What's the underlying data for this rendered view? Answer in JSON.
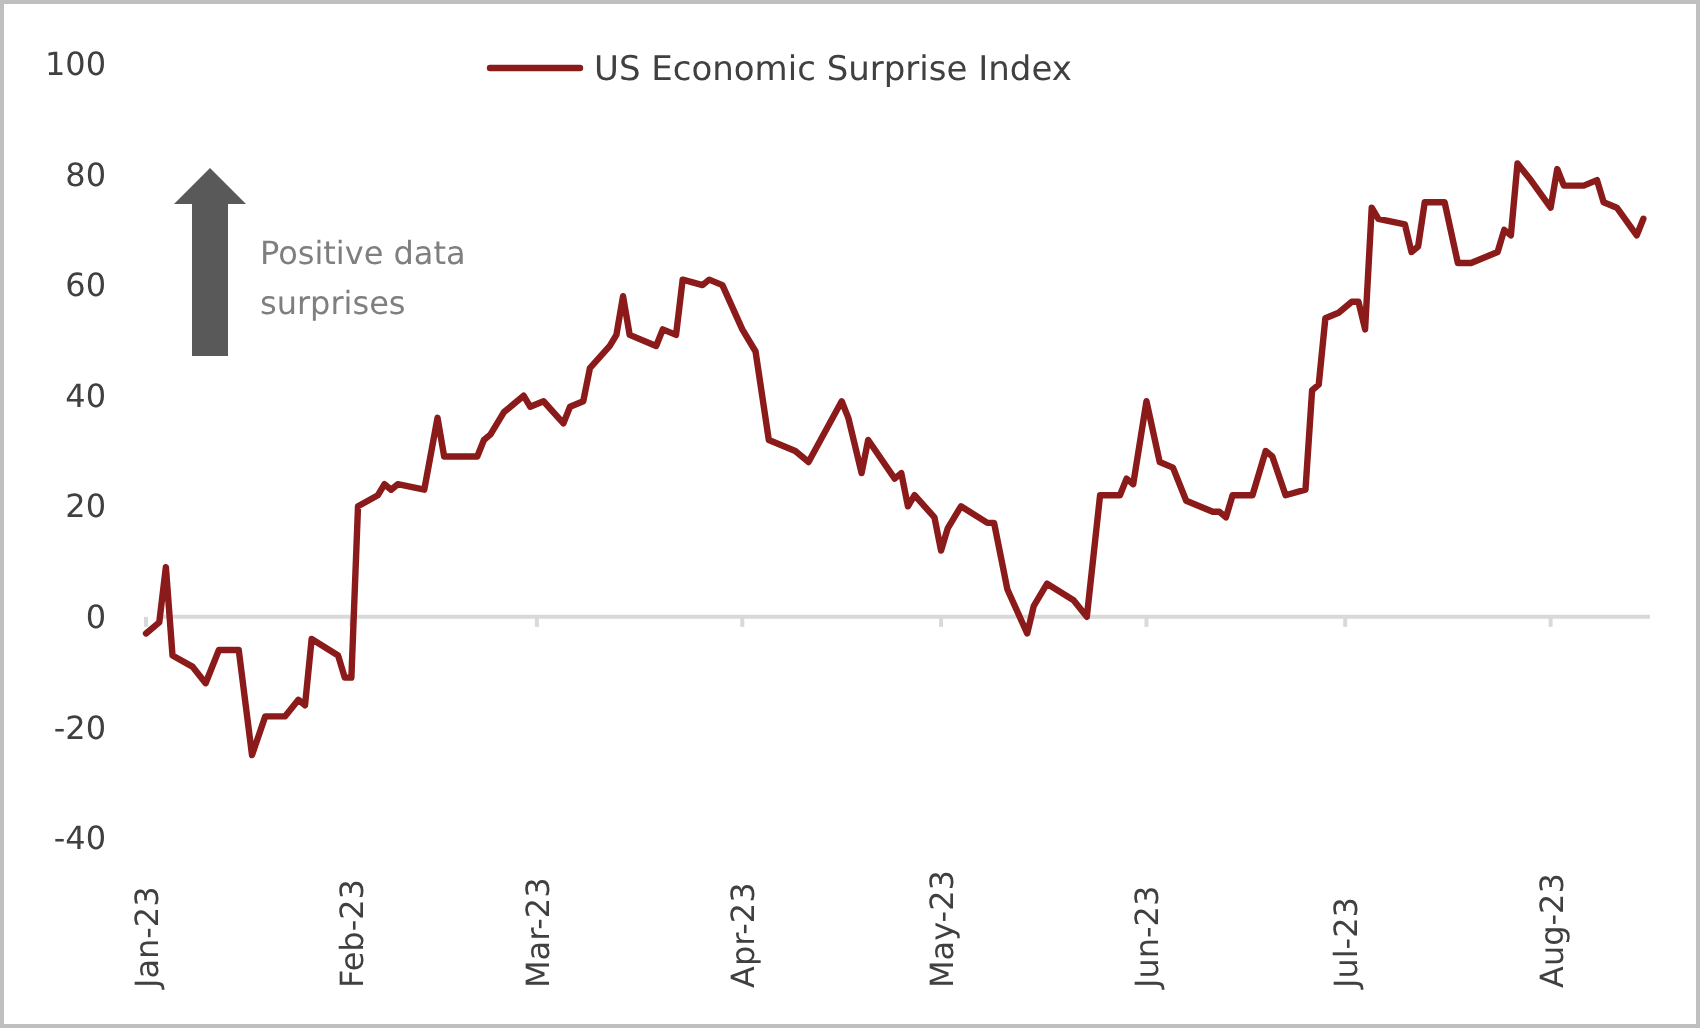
{
  "chart_data": {
    "type": "line",
    "legend": "top",
    "grid": false,
    "marker": "none",
    "line_style": "solid",
    "annotations": [
      "Positive data surprises"
    ],
    "xlim": [
      "2023-01-01",
      "2023-08-16"
    ],
    "xticks": [
      {
        "value": "2023-01-01",
        "label": "Jan-23"
      },
      {
        "value": "2023-02-01",
        "label": "Feb-23"
      },
      {
        "value": "2023-03-01",
        "label": "Mar-23"
      },
      {
        "value": "2023-04-01",
        "label": "Apr-23"
      },
      {
        "value": "2023-05-01",
        "label": "May-23"
      },
      {
        "value": "2023-06-01",
        "label": "Jun-23"
      },
      {
        "value": "2023-07-01",
        "label": "Jul-23"
      },
      {
        "value": "2023-08-01",
        "label": "Aug-23"
      }
    ],
    "ref_lines": [
      {
        "axis": "y",
        "value": 0,
        "color": "#d9d9d9"
      }
    ],
    "ylim": [
      -40,
      100
    ],
    "yticks": [
      -40,
      -20,
      0,
      20,
      40,
      60,
      80,
      100
    ],
    "x": [
      "2023-01-01",
      "2023-01-03",
      "2023-01-04",
      "2023-01-05",
      "2023-01-08",
      "2023-01-10",
      "2023-01-12",
      "2023-01-15",
      "2023-01-17",
      "2023-01-19",
      "2023-01-22",
      "2023-01-24",
      "2023-01-25",
      "2023-01-26",
      "2023-01-30",
      "2023-01-31",
      "2023-02-01",
      "2023-02-02",
      "2023-02-05",
      "2023-02-06",
      "2023-02-07",
      "2023-02-08",
      "2023-02-12",
      "2023-02-14",
      "2023-02-15",
      "2023-02-20",
      "2023-02-21",
      "2023-02-22",
      "2023-02-24",
      "2023-02-27",
      "2023-02-28",
      "2023-03-02",
      "2023-03-05",
      "2023-03-06",
      "2023-03-08",
      "2023-03-09",
      "2023-03-12",
      "2023-03-13",
      "2023-03-14",
      "2023-03-15",
      "2023-03-19",
      "2023-03-20",
      "2023-03-22",
      "2023-03-23",
      "2023-03-26",
      "2023-03-27",
      "2023-03-29",
      "2023-04-01",
      "2023-04-03",
      "2023-04-05",
      "2023-04-09",
      "2023-04-11",
      "2023-04-16",
      "2023-04-17",
      "2023-04-19",
      "2023-04-20",
      "2023-04-24",
      "2023-04-25",
      "2023-04-26",
      "2023-04-27",
      "2023-04-30",
      "2023-05-01",
      "2023-05-02",
      "2023-05-04",
      "2023-05-08",
      "2023-05-09",
      "2023-05-11",
      "2023-05-14",
      "2023-05-15",
      "2023-05-17",
      "2023-05-21",
      "2023-05-23",
      "2023-05-25",
      "2023-05-28",
      "2023-05-29",
      "2023-05-30",
      "2023-06-01",
      "2023-06-03",
      "2023-06-05",
      "2023-06-07",
      "2023-06-11",
      "2023-06-12",
      "2023-06-13",
      "2023-06-14",
      "2023-06-17",
      "2023-06-19",
      "2023-06-20",
      "2023-06-22",
      "2023-06-25",
      "2023-06-26",
      "2023-06-27",
      "2023-06-28",
      "2023-06-30",
      "2023-07-02",
      "2023-07-03",
      "2023-07-04",
      "2023-07-05",
      "2023-07-06",
      "2023-07-10",
      "2023-07-11",
      "2023-07-12",
      "2023-07-13",
      "2023-07-16",
      "2023-07-18",
      "2023-07-20",
      "2023-07-24",
      "2023-07-25",
      "2023-07-26",
      "2023-07-27",
      "2023-07-29",
      "2023-08-01",
      "2023-08-02",
      "2023-08-03",
      "2023-08-06",
      "2023-08-08",
      "2023-08-09",
      "2023-08-11",
      "2023-08-14",
      "2023-08-15"
    ],
    "series": [
      {
        "name": "US Economic Surprise Index",
        "color": "#8b1a1a",
        "values": [
          -3,
          -1,
          9,
          -7,
          -9,
          -12,
          -6,
          -6,
          -25,
          -18,
          -18,
          -15,
          -16,
          -4,
          -7,
          -11,
          -11,
          20,
          22,
          24,
          23,
          24,
          23,
          36,
          29,
          29,
          32,
          33,
          37,
          40,
          38,
          39,
          35,
          38,
          39,
          45,
          49,
          51,
          58,
          51,
          49,
          52,
          51,
          61,
          60,
          61,
          60,
          52,
          48,
          32,
          30,
          28,
          39,
          36,
          26,
          32,
          25,
          26,
          20,
          22,
          18,
          12,
          16,
          20,
          17,
          17,
          5,
          -3,
          2,
          6,
          3,
          0,
          22,
          22,
          25,
          24,
          39,
          28,
          27,
          21,
          19,
          19,
          18,
          22,
          22,
          30,
          29,
          22,
          23,
          41,
          42,
          54,
          55,
          57,
          57,
          52,
          74,
          72,
          71,
          66,
          67,
          75,
          75,
          64,
          64,
          66,
          70,
          69,
          82,
          79,
          74,
          81,
          78,
          78,
          79,
          75,
          74,
          69,
          72
        ]
      }
    ]
  }
}
